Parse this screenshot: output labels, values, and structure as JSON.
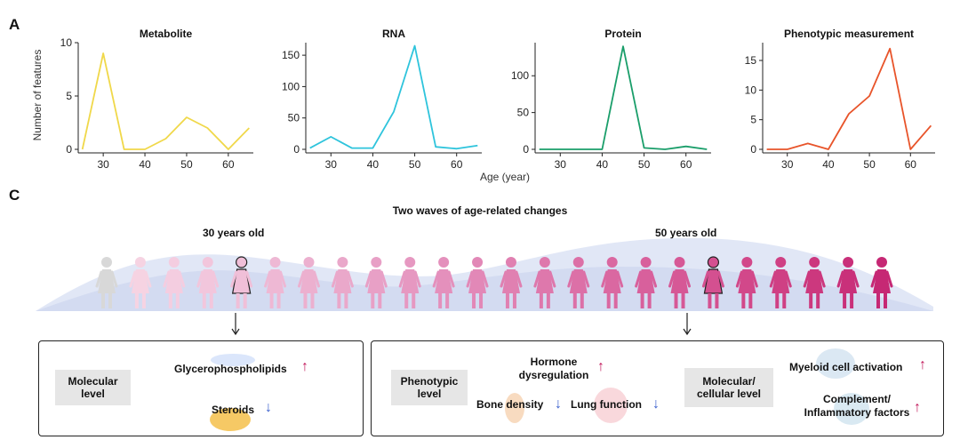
{
  "panel_a_letter": "A",
  "panel_c_letter": "C",
  "shared_ylabel": "Number of features",
  "shared_xlabel": "Age (year)",
  "chart_data": [
    {
      "type": "line",
      "title": "Metabolite",
      "color": "#f0d84a",
      "x": [
        25,
        30,
        35,
        40,
        45,
        50,
        55,
        60,
        65
      ],
      "values": [
        0,
        9,
        0,
        0,
        1,
        3,
        2,
        0,
        2
      ],
      "ylim": [
        0,
        10
      ],
      "yticks": [
        0,
        5,
        10
      ],
      "xticks": [
        30,
        40,
        50,
        60
      ]
    },
    {
      "type": "line",
      "title": "RNA",
      "color": "#2ec4dc",
      "x": [
        25,
        30,
        35,
        40,
        45,
        50,
        55,
        60,
        65
      ],
      "values": [
        2,
        20,
        2,
        2,
        60,
        165,
        4,
        1,
        6
      ],
      "ylim": [
        0,
        170
      ],
      "yticks": [
        0,
        50,
        100,
        150
      ],
      "xticks": [
        30,
        40,
        50,
        60
      ]
    },
    {
      "type": "line",
      "title": "Protein",
      "color": "#1a9e6a",
      "x": [
        25,
        30,
        35,
        40,
        45,
        50,
        55,
        60,
        65
      ],
      "values": [
        0,
        0,
        0,
        0,
        140,
        2,
        0,
        4,
        0
      ],
      "ylim": [
        0,
        145
      ],
      "yticks": [
        0,
        50,
        100
      ],
      "xticks": [
        30,
        40,
        50,
        60
      ]
    },
    {
      "type": "line",
      "title": "Phenotypic measurement",
      "color": "#e8542a",
      "x": [
        25,
        30,
        35,
        40,
        45,
        50,
        55,
        60,
        65
      ],
      "values": [
        0,
        0,
        1,
        0,
        6,
        9,
        17,
        0,
        4
      ],
      "ylim": [
        0,
        18
      ],
      "yticks": [
        0,
        5,
        10,
        15
      ],
      "xticks": [
        30,
        40,
        50,
        60
      ]
    }
  ],
  "panel_c": {
    "title": "Two waves of age-related changes",
    "age_30": "30 years old",
    "age_50": "50 years old",
    "figure_colors": [
      "#d8d8d8",
      "#f6d3e2",
      "#f4cde0",
      "#f2c6dc",
      "#f0bfd8",
      "#eeb8d4",
      "#ecb0cf",
      "#eaa8ca",
      "#e8a0c6",
      "#e698c1",
      "#e490bc",
      "#e288b7",
      "#e080b1",
      "#de78ac",
      "#dc70a7",
      "#da68a1",
      "#d8609c",
      "#d65896",
      "#d45090",
      "#d2488a",
      "#cf4084",
      "#cc387e",
      "#c9307a",
      "#c62874"
    ],
    "left_box": {
      "category": "Molecular level",
      "item1": "Glycerophospholipids",
      "item2": "Steroids"
    },
    "right_box": {
      "category1": "Phenotypic level",
      "hormone": "Hormone dysregulation",
      "bone": "Bone density",
      "lung": "Lung function",
      "category2": "Molecular/ cellular level",
      "myeloid": "Myeloid cell activation",
      "complement": "Complement/ Inflammatory factors"
    },
    "arrow_up": "↑",
    "arrow_down": "↓"
  }
}
